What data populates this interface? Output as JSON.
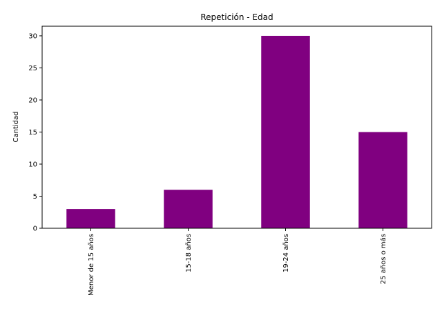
{
  "chart_data": {
    "type": "bar",
    "title": "Repetición - Edad",
    "xlabel": "",
    "ylabel": "Cantidad",
    "categories": [
      "Menor de 15 años",
      "15-18 años",
      "19-24 años",
      "25 años o más"
    ],
    "values": [
      3,
      6,
      30,
      15
    ],
    "ylim": [
      0,
      31.5
    ],
    "yticks": [
      0,
      5,
      10,
      15,
      20,
      25,
      30
    ],
    "grid": false,
    "bar_color": "#800080"
  }
}
